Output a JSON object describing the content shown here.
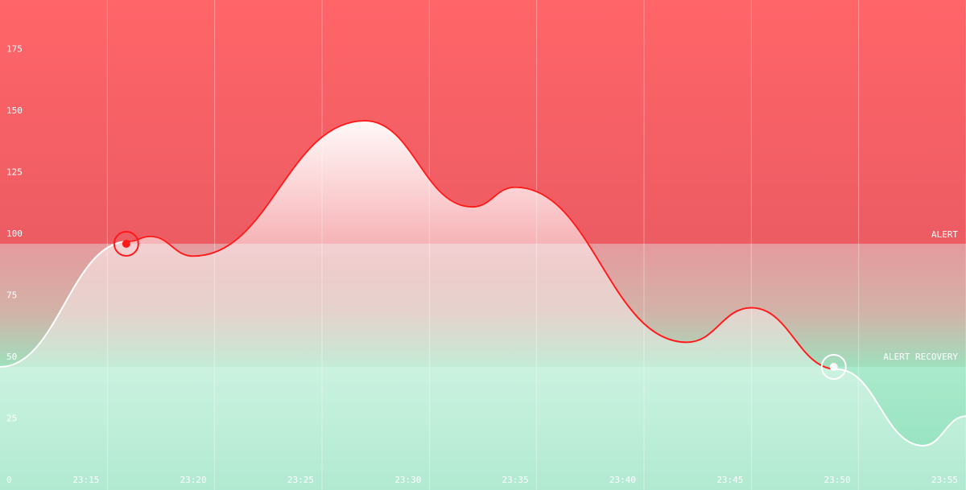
{
  "chart_data": {
    "type": "line",
    "x": [
      "23:10",
      "23:16",
      "23:17",
      "23:19",
      "23:27",
      "23:32",
      "23:34",
      "23:42",
      "23:45",
      "23:49",
      "23:53",
      "23:55"
    ],
    "series": [
      {
        "values": [
          50,
          101,
          103,
          95,
          150,
          115,
          123,
          60,
          74,
          49,
          18,
          30
        ],
        "color": "#ff1a1a"
      }
    ],
    "xlim": [
      "23:10",
      "23:55"
    ],
    "xticks": [
      "23:15",
      "23:20",
      "23:25",
      "23:30",
      "23:35",
      "23:40",
      "23:45",
      "23:50",
      "23:55"
    ],
    "ylim": [
      0,
      199
    ],
    "yticks": [
      0,
      25,
      50,
      75,
      100,
      125,
      150,
      175
    ],
    "alert": {
      "value": 100,
      "label": "ALERT"
    },
    "recovery": {
      "value": 50,
      "label": "ALERT RECOVERY"
    },
    "grid": true
  }
}
